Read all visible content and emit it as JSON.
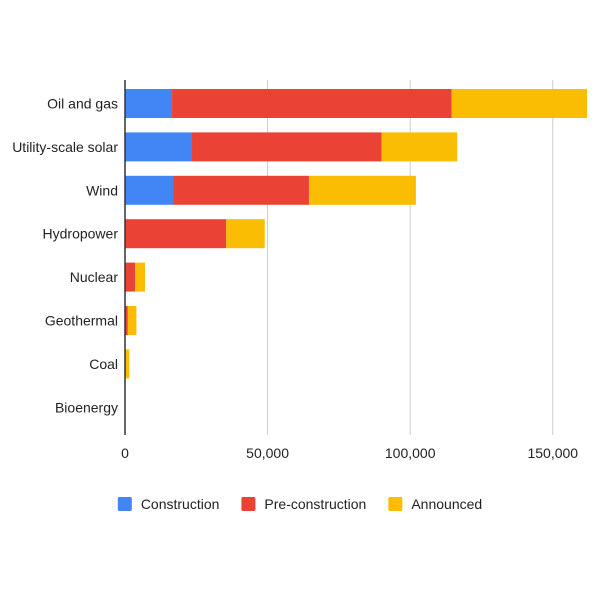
{
  "chart_data": {
    "type": "bar",
    "orientation": "horizontal",
    "stacked": true,
    "categories": [
      "Oil and gas",
      "Utility-scale solar",
      "Wind",
      "Hydropower",
      "Nuclear",
      "Geothermal",
      "Coal",
      "Bioenergy"
    ],
    "series": [
      {
        "name": "Construction",
        "color": "#4285F4",
        "values": [
          16500,
          23500,
          17000,
          0,
          0,
          0,
          0,
          0
        ]
      },
      {
        "name": "Pre-construction",
        "color": "#EA4335",
        "values": [
          98000,
          66500,
          47500,
          35500,
          3500,
          1000,
          0,
          0
        ]
      },
      {
        "name": "Announced",
        "color": "#FBBC04",
        "values": [
          47500,
          26500,
          37500,
          13500,
          3500,
          3000,
          1500,
          0
        ]
      }
    ],
    "x_ticks": [
      0,
      50000,
      100000,
      150000
    ],
    "x_tick_labels": [
      "0",
      "50,000",
      "100,000",
      "150,000"
    ],
    "xlim": [
      0,
      162000
    ],
    "grid": "vertical",
    "legend_position": "bottom",
    "title": "",
    "xlabel": "",
    "ylabel": ""
  }
}
